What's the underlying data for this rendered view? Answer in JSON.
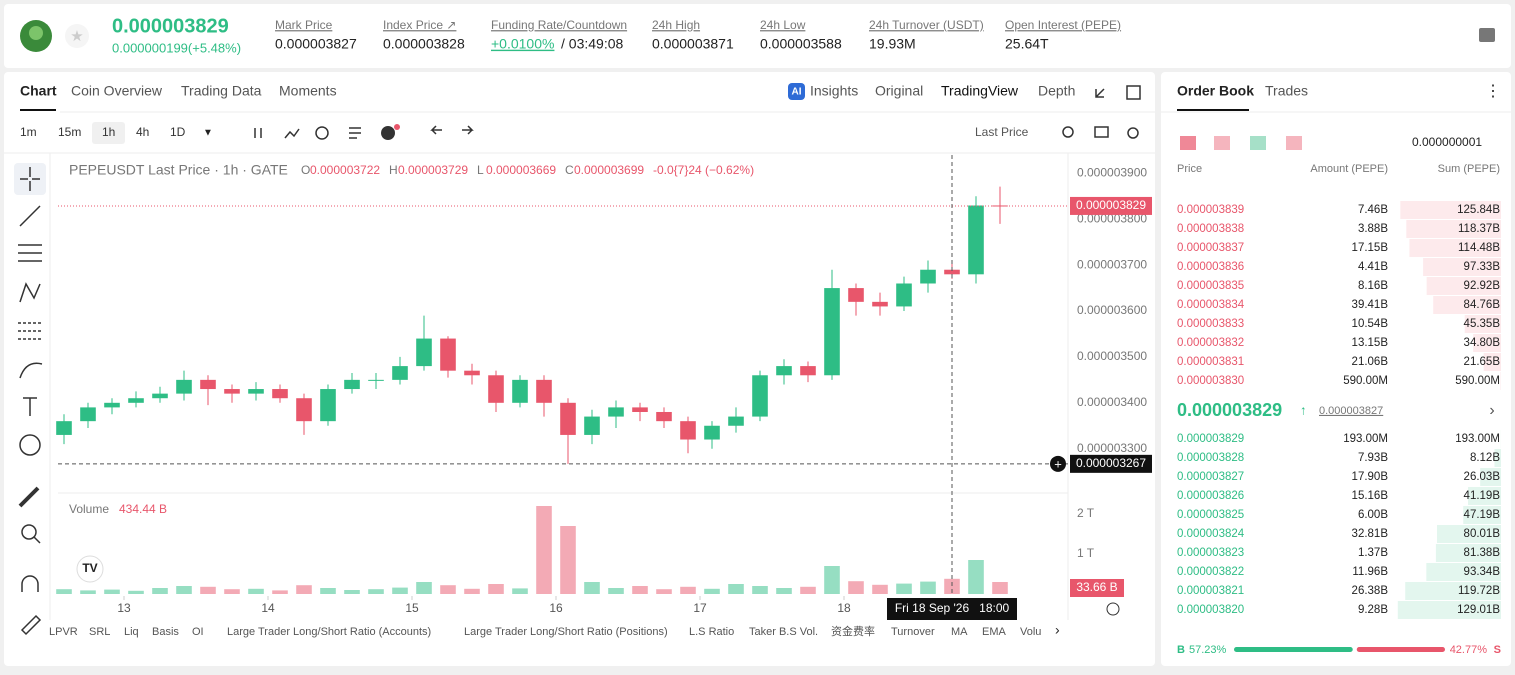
{
  "header": {
    "price": "0.000003829",
    "change": "0.000000199(+5.48%)",
    "stats": [
      {
        "label": "Mark Price",
        "value": "0.000003827"
      },
      {
        "label": "Index Price ↗",
        "value": "0.000003828"
      },
      {
        "label": "Funding Rate/Countdown",
        "value": "+0.0100%",
        "extra": "/ 03:49:08"
      },
      {
        "label": "24h High",
        "value": "0.000003871"
      },
      {
        "label": "24h Low",
        "value": "0.000003588"
      },
      {
        "label": "24h Turnover (USDT)",
        "value": "19.93M"
      },
      {
        "label": "Open Interest (PEPE)",
        "value": "25.64T"
      }
    ]
  },
  "chart_tabs": [
    "Chart",
    "Coin Overview",
    "Trading Data",
    "Moments"
  ],
  "view_tabs": [
    "Insights",
    "Original",
    "TradingView",
    "Depth"
  ],
  "intervals": [
    "1m",
    "15m",
    "1h",
    "4h",
    "1D"
  ],
  "price_source": "Last Price",
  "legend": {
    "title": "PEPEUSDT Last Price · 1h · GATE",
    "ohlc": [
      {
        "k": "O",
        "v": "0.000003722"
      },
      {
        "k": "H",
        "v": "0.000003729"
      },
      {
        "k": "L",
        "v": "0.000003669"
      },
      {
        "k": "C",
        "v": "0.000003699"
      }
    ],
    "change": "-0.0{7}24 (−0.62%)"
  },
  "volume_legend": {
    "label": "Volume",
    "value": "434.44 B"
  },
  "last_price_label": "0.000003829",
  "crosshair_price_label": "0.000003267",
  "crosshair_time": "Fri 18 Sep '26   18:00",
  "last_volume_label": "33.66 B",
  "indicators": [
    "LPVR",
    "SRL",
    "Liq",
    "Basis",
    "OI",
    "Large Trader Long/Short Ratio (Accounts)",
    "Large Trader Long/Short Ratio (Positions)",
    "L.S Ratio",
    "Taker B.S Vol.",
    "资金费率",
    "Turnover",
    "MA",
    "EMA",
    "Volu"
  ],
  "chart_data": {
    "type": "candlestick",
    "up_color": "#2ebd85",
    "down_color": "#e8566b",
    "x": [
      14,
      18,
      22,
      26,
      30,
      34,
      38,
      42,
      46,
      50,
      54,
      58,
      62,
      66,
      70,
      74,
      78,
      82,
      86,
      90,
      94,
      98,
      102,
      106,
      110,
      114,
      118,
      122,
      126,
      130,
      134,
      138,
      142,
      146,
      150,
      154,
      158,
      162,
      166,
      170
    ],
    "open": [
      3.33e-06,
      3.36e-06,
      3.39e-06,
      3.4e-06,
      3.41e-06,
      3.42e-06,
      3.45e-06,
      3.43e-06,
      3.42e-06,
      3.43e-06,
      3.41e-06,
      3.36e-06,
      3.43e-06,
      3.45e-06,
      3.45e-06,
      3.48e-06,
      3.54e-06,
      3.47e-06,
      3.46e-06,
      3.4e-06,
      3.45e-06,
      3.4e-06,
      3.33e-06,
      3.37e-06,
      3.39e-06,
      3.38e-06,
      3.36e-06,
      3.32e-06,
      3.35e-06,
      3.37e-06,
      3.46e-06,
      3.48e-06,
      3.46e-06,
      3.65e-06,
      3.62e-06,
      3.61e-06,
      3.66e-06,
      3.69e-06,
      3.68e-06,
      3.83e-06
    ],
    "high": [
      3.375e-06,
      3.4e-06,
      3.41e-06,
      3.425e-06,
      3.435e-06,
      3.47e-06,
      3.46e-06,
      3.44e-06,
      3.445e-06,
      3.44e-06,
      3.42e-06,
      3.44e-06,
      3.465e-06,
      3.465e-06,
      3.5e-06,
      3.59e-06,
      3.545e-06,
      3.485e-06,
      3.47e-06,
      3.46e-06,
      3.46e-06,
      3.41e-06,
      3.385e-06,
      3.405e-06,
      3.4e-06,
      3.39e-06,
      3.37e-06,
      3.36e-06,
      3.39e-06,
      3.47e-06,
      3.495e-06,
      3.49e-06,
      3.69e-06,
      3.66e-06,
      3.64e-06,
      3.675e-06,
      3.71e-06,
      3.705e-06,
      3.85e-06,
      3.871e-06
    ],
    "low": [
      3.31e-06,
      3.345e-06,
      3.375e-06,
      3.39e-06,
      3.4e-06,
      3.405e-06,
      3.395e-06,
      3.4e-06,
      3.405e-06,
      3.4e-06,
      3.33e-06,
      3.35e-06,
      3.42e-06,
      3.43e-06,
      3.44e-06,
      3.47e-06,
      3.455e-06,
      3.44e-06,
      3.38e-06,
      3.39e-06,
      3.37e-06,
      3.267e-06,
      3.31e-06,
      3.345e-06,
      3.36e-06,
      3.345e-06,
      3.29e-06,
      3.3e-06,
      3.335e-06,
      3.36e-06,
      3.44e-06,
      3.445e-06,
      3.45e-06,
      3.59e-06,
      3.59e-06,
      3.6e-06,
      3.64e-06,
      3.67e-06,
      3.66e-06,
      3.79e-06
    ],
    "close": [
      3.36e-06,
      3.39e-06,
      3.4e-06,
      3.41e-06,
      3.42e-06,
      3.45e-06,
      3.43e-06,
      3.42e-06,
      3.43e-06,
      3.41e-06,
      3.36e-06,
      3.43e-06,
      3.45e-06,
      3.45e-06,
      3.48e-06,
      3.54e-06,
      3.47e-06,
      3.46e-06,
      3.4e-06,
      3.45e-06,
      3.4e-06,
      3.33e-06,
      3.37e-06,
      3.39e-06,
      3.38e-06,
      3.36e-06,
      3.32e-06,
      3.35e-06,
      3.37e-06,
      3.46e-06,
      3.48e-06,
      3.46e-06,
      3.65e-06,
      3.62e-06,
      3.61e-06,
      3.66e-06,
      3.69e-06,
      3.68e-06,
      3.83e-06,
      3.829e-06
    ],
    "volume": [
      120,
      90,
      110,
      80,
      150,
      200,
      180,
      120,
      130,
      90,
      220,
      150,
      100,
      120,
      160,
      300,
      220,
      130,
      250,
      140,
      2200,
      1700,
      300,
      150,
      200,
      120,
      180,
      130,
      250,
      200,
      150,
      180,
      700,
      320,
      230,
      260,
      310,
      380,
      850,
      300
    ],
    "xlim": [
      13,
      181
    ],
    "xticks": [
      {
        "value": 24,
        "label": "13"
      },
      {
        "value": 48,
        "label": "14"
      },
      {
        "value": 72,
        "label": "15"
      },
      {
        "value": 96,
        "label": "16"
      },
      {
        "value": 120,
        "label": "17"
      },
      {
        "value": 144,
        "label": "18"
      }
    ],
    "ylim": [
      3.21e-06,
      3.94e-06
    ],
    "yticks": [
      {
        "value": 3.3e-06,
        "label": "0.000003300"
      },
      {
        "value": 3.4e-06,
        "label": "0.000003400"
      },
      {
        "value": 3.5e-06,
        "label": "0.000003500"
      },
      {
        "value": 3.6e-06,
        "label": "0.000003600"
      },
      {
        "value": 3.7e-06,
        "label": "0.000003700"
      },
      {
        "value": 3.8e-06,
        "label": "0.000003800"
      },
      {
        "value": 3.9e-06,
        "label": "0.000003900"
      }
    ],
    "y2lim": [
      0,
      2500
    ],
    "y2ticks": [
      {
        "value": 1000,
        "label": "1 T"
      },
      {
        "value": 2000,
        "label": "2 T"
      }
    ],
    "last_price": 3.829e-06,
    "crosshair_price": 3.267e-06,
    "crosshair_x": 162,
    "grid": false
  },
  "order_book": {
    "tabs": [
      "Order Book",
      "Trades"
    ],
    "precision": "0.000000001",
    "columns": [
      "Price",
      "Amount (PEPE)",
      "Sum (PEPE)"
    ],
    "asks": [
      [
        "0.000003839",
        "7.46B",
        "125.84B"
      ],
      [
        "0.000003838",
        "3.88B",
        "118.37B"
      ],
      [
        "0.000003837",
        "17.15B",
        "114.48B"
      ],
      [
        "0.000003836",
        "4.41B",
        "97.33B"
      ],
      [
        "0.000003835",
        "8.16B",
        "92.92B"
      ],
      [
        "0.000003834",
        "39.41B",
        "84.76B"
      ],
      [
        "0.000003833",
        "10.54B",
        "45.35B"
      ],
      [
        "0.000003832",
        "13.15B",
        "34.80B"
      ],
      [
        "0.000003831",
        "21.06B",
        "21.65B"
      ],
      [
        "0.000003830",
        "590.00M",
        "590.00M"
      ]
    ],
    "mid_price": "0.000003829",
    "mark_price": "0.000003827",
    "bids": [
      [
        "0.000003829",
        "193.00M",
        "193.00M"
      ],
      [
        "0.000003828",
        "7.93B",
        "8.12B"
      ],
      [
        "0.000003827",
        "17.90B",
        "26.03B"
      ],
      [
        "0.000003826",
        "15.16B",
        "41.19B"
      ],
      [
        "0.000003825",
        "6.00B",
        "47.19B"
      ],
      [
        "0.000003824",
        "32.81B",
        "80.01B"
      ],
      [
        "0.000003823",
        "1.37B",
        "81.38B"
      ],
      [
        "0.000003822",
        "11.96B",
        "93.34B"
      ],
      [
        "0.000003821",
        "26.38B",
        "119.72B"
      ],
      [
        "0.000003820",
        "9.28B",
        "129.01B"
      ]
    ],
    "buy_label": "B",
    "buy_pct": 57.23,
    "buy_text": "57.23%",
    "sell_label": "S",
    "sell_pct": 42.77,
    "sell_text": "42.77%"
  }
}
